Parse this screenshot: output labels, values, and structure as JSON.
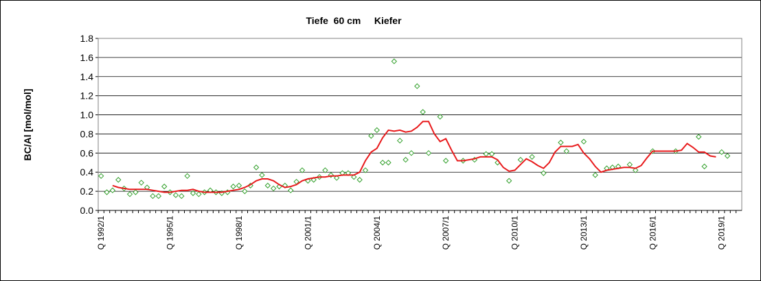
{
  "chart_data": {
    "type": "line",
    "title": "Tiefe  60 cm     Kiefer",
    "y_label": "BC/Al [mol/mol]",
    "categories": [
      "Q 1992/1",
      null,
      null,
      null,
      null,
      null,
      null,
      null,
      null,
      null,
      null,
      null,
      "Q 1995/1",
      null,
      null,
      null,
      null,
      null,
      null,
      null,
      null,
      null,
      null,
      null,
      "Q 1998/1",
      null,
      null,
      null,
      null,
      null,
      null,
      null,
      null,
      null,
      null,
      null,
      "Q 2001/1",
      null,
      null,
      null,
      null,
      null,
      null,
      null,
      null,
      null,
      null,
      null,
      "Q 2004/1",
      null,
      null,
      null,
      null,
      null,
      null,
      null,
      null,
      null,
      null,
      null,
      "Q 2007/1",
      null,
      null,
      null,
      null,
      null,
      null,
      null,
      null,
      null,
      null,
      null,
      "Q 2010/1",
      null,
      null,
      null,
      null,
      null,
      null,
      null,
      null,
      null,
      null,
      null,
      "Q 2013/1",
      null,
      null,
      null,
      null,
      null,
      null,
      null,
      null,
      null,
      null,
      null,
      "Q 2016/1",
      null,
      null,
      null,
      null,
      null,
      null,
      null,
      null,
      null,
      null,
      null,
      "Q 2019/1",
      null,
      null,
      null
    ],
    "series": [
      {
        "mode": "markers",
        "marker": "diamond",
        "color": "#33a02c",
        "values": [
          0.36,
          0.19,
          0.21,
          0.32,
          0.23,
          0.17,
          0.19,
          0.29,
          0.24,
          0.15,
          0.15,
          0.25,
          0.19,
          0.16,
          0.15,
          0.36,
          0.18,
          0.17,
          0.19,
          0.21,
          0.19,
          0.18,
          0.19,
          0.25,
          0.26,
          0.2,
          0.26,
          0.45,
          0.37,
          0.26,
          0.23,
          0.25,
          0.26,
          0.21,
          0.3,
          0.42,
          0.31,
          0.32,
          0.35,
          0.42,
          0.37,
          0.34,
          0.39,
          0.39,
          0.35,
          0.32,
          0.42,
          0.78,
          0.84,
          0.5,
          0.5,
          1.56,
          0.73,
          0.53,
          0.6,
          1.3,
          1.03,
          0.6,
          null,
          0.98,
          0.52,
          null,
          null,
          0.52,
          null,
          0.53,
          null,
          0.59,
          0.59,
          0.5,
          null,
          0.31,
          null,
          0.53,
          null,
          0.56,
          null,
          0.39,
          null,
          null,
          0.71,
          0.62,
          null,
          null,
          0.72,
          null,
          0.37,
          null,
          0.44,
          0.45,
          0.46,
          null,
          0.48,
          0.42,
          null,
          null,
          0.62,
          null,
          null,
          null,
          0.62,
          null,
          null,
          null,
          0.77,
          0.46,
          null,
          null,
          0.61,
          0.57,
          null,
          null
        ]
      },
      {
        "mode": "line",
        "color": "#e8191b",
        "values": [
          null,
          null,
          0.26,
          0.24,
          0.23,
          0.22,
          0.22,
          0.22,
          0.22,
          0.21,
          0.2,
          0.19,
          0.19,
          0.2,
          0.21,
          0.21,
          0.22,
          0.2,
          0.19,
          0.19,
          0.19,
          0.19,
          0.2,
          0.21,
          0.22,
          0.24,
          0.27,
          0.31,
          0.33,
          0.33,
          0.31,
          0.27,
          0.24,
          0.25,
          0.27,
          0.31,
          0.33,
          0.34,
          0.35,
          0.35,
          0.36,
          0.36,
          0.37,
          0.37,
          0.37,
          0.4,
          0.52,
          0.61,
          0.65,
          0.76,
          0.84,
          0.83,
          0.84,
          0.82,
          0.83,
          0.87,
          0.93,
          0.93,
          0.8,
          0.72,
          0.75,
          0.63,
          0.52,
          0.52,
          0.53,
          0.54,
          0.56,
          0.56,
          0.56,
          0.53,
          0.45,
          0.41,
          0.42,
          0.48,
          0.54,
          0.51,
          0.47,
          0.44,
          0.5,
          0.61,
          0.67,
          0.67,
          0.67,
          0.69,
          0.6,
          0.54,
          0.46,
          0.4,
          0.42,
          0.43,
          0.44,
          0.45,
          0.45,
          0.44,
          0.47,
          0.55,
          0.62,
          0.62,
          0.62,
          0.62,
          0.62,
          0.63,
          0.7,
          0.66,
          0.61,
          0.61,
          0.57,
          0.56,
          null,
          null,
          null,
          null
        ]
      }
    ],
    "ylim": [
      0,
      1.8
    ],
    "yticks": [
      {
        "value": 0,
        "label": "0.0"
      },
      0.2,
      0.4,
      0.6,
      0.8,
      {
        "value": 1,
        "label": "1.0"
      },
      1.2,
      1.4,
      1.6,
      1.8
    ],
    "grid": true
  }
}
